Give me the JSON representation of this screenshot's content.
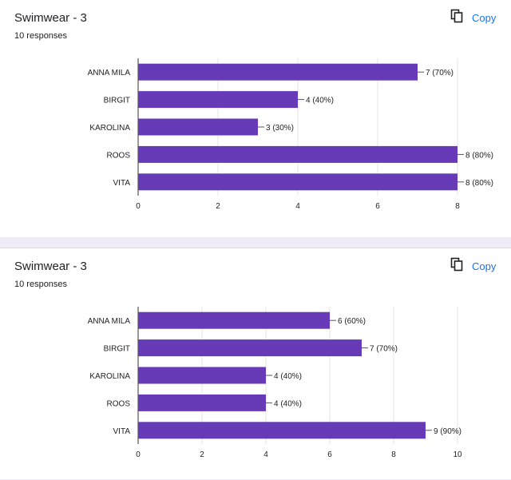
{
  "colors": {
    "bar": "#673ab7",
    "grid": "#e6e6e6",
    "axis": "#333333",
    "link": "#1a73e8",
    "page_bg": "#f0ebf8"
  },
  "icons": {
    "copy": "copy-icon"
  },
  "cards": [
    {
      "title": "Swimwear - 3",
      "responses": "10 responses",
      "copy_label": "Copy"
    },
    {
      "title": "Swimwear - 3",
      "responses": "10 responses",
      "copy_label": "Copy"
    }
  ],
  "chart_data": [
    {
      "type": "bar",
      "orientation": "horizontal",
      "categories": [
        "ANNA MILA",
        "BIRGIT",
        "KAROLINA",
        "ROOS",
        "VITA"
      ],
      "values": [
        7,
        4,
        3,
        8,
        8
      ],
      "data_labels": [
        "7 (70%)",
        "4 (40%)",
        "3 (30%)",
        "8 (80%)",
        "8 (80%)"
      ],
      "xlim": [
        0,
        8
      ],
      "x_ticks": [
        0,
        2,
        4,
        6,
        8
      ],
      "grid": true
    },
    {
      "type": "bar",
      "orientation": "horizontal",
      "categories": [
        "ANNA MILA",
        "BIRGIT",
        "KAROLINA",
        "ROOS",
        "VITA"
      ],
      "values": [
        6,
        7,
        4,
        4,
        9
      ],
      "data_labels": [
        "6 (60%)",
        "7 (70%)",
        "4 (40%)",
        "4 (40%)",
        "9 (90%)"
      ],
      "xlim": [
        0,
        10
      ],
      "x_ticks": [
        0,
        2,
        4,
        6,
        8,
        10
      ],
      "grid": true
    }
  ]
}
